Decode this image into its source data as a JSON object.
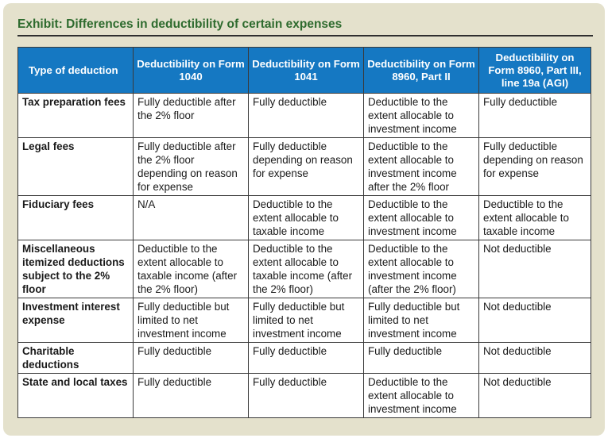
{
  "exhibit": {
    "title": "Exhibit: Differences in deductibility of certain expenses"
  },
  "table": {
    "headers": [
      "Type of deduction",
      "Deductibility on Form 1040",
      "Deductibility on Form 1041",
      "Deductibility on Form 8960, Part II",
      "Deductibility on Form 8960, Part III, line 19a (AGI)"
    ],
    "rows": [
      [
        "Tax preparation fees",
        "Fully deductible after the 2% floor",
        "Fully deductible",
        "Deductible to the extent allocable to investment income",
        "Fully deductible"
      ],
      [
        "Legal fees",
        "Fully deductible after the 2% floor depending on reason for expense",
        "Fully deductible depending on reason for expense",
        "Deductible to the extent allocable to investment income after the 2% floor",
        "Fully deductible depending on reason for expense"
      ],
      [
        "Fiduciary fees",
        "N/A",
        "Deductible to the extent allocable to taxable income",
        "Deductible to the extent allocable to investment income",
        "Deductible to the extent allocable to taxable income"
      ],
      [
        "Miscellaneous itemized deductions subject to the 2% floor",
        "Deductible to the extent allocable to taxable income (after the 2% floor)",
        "Deductible to the extent allocable to taxable income (after the 2% floor)",
        "Deductible to the extent allocable to investment income (after the 2% floor)",
        "Not deductible"
      ],
      [
        "Investment interest expense",
        "Fully deductible but limited to net investment income",
        "Fully deductible but limited to net investment income",
        "Fully deductible but limited to net investment income",
        "Not deductible"
      ],
      [
        "Charitable deductions",
        "Fully deductible",
        "Fully deductible",
        "Fully deductible",
        "Not deductible"
      ],
      [
        "State and local taxes",
        "Fully deductible",
        "Fully deductible",
        "Deductible to the extent allocable to investment income",
        "Not deductible"
      ]
    ]
  }
}
